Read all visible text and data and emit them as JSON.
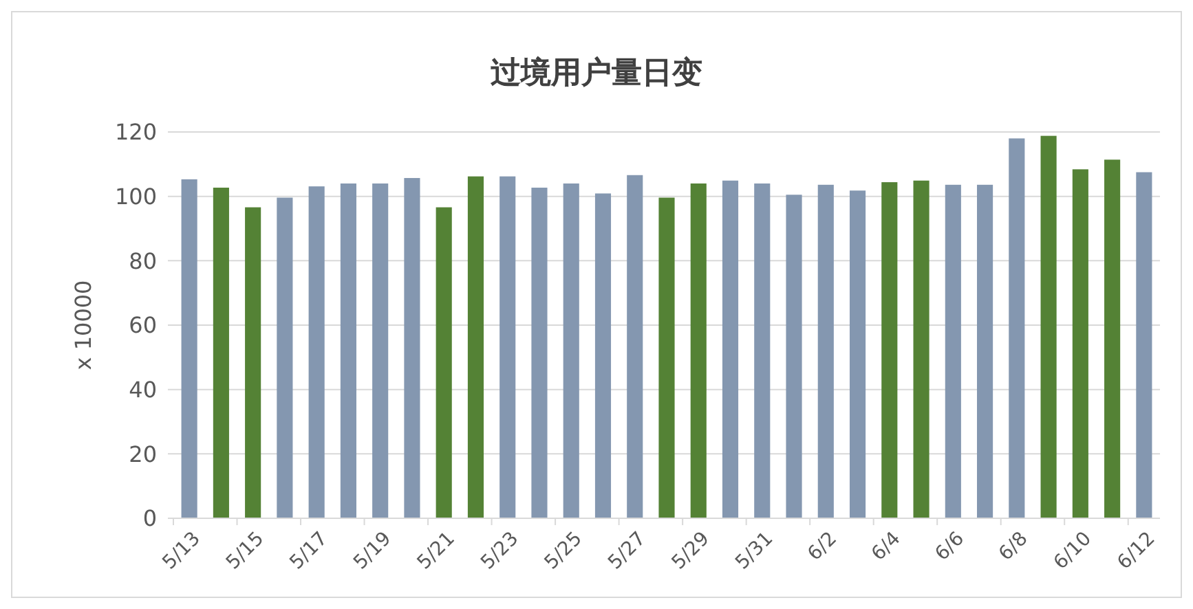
{
  "chart_data": {
    "type": "bar",
    "title": "过境用户量日变",
    "ylabel": "x 10000",
    "categories": [
      "5/13",
      null,
      "5/15",
      null,
      "5/17",
      null,
      "5/19",
      null,
      "5/21",
      null,
      "5/23",
      null,
      "5/25",
      null,
      "5/27",
      null,
      "5/29",
      null,
      "5/31",
      null,
      "6/2",
      null,
      "6/4",
      null,
      "6/6",
      null,
      "6/8",
      null,
      "6/10",
      null,
      "6/12"
    ],
    "values": [
      105.3,
      102.7,
      96.6,
      99.6,
      103.1,
      104.0,
      104.0,
      105.7,
      96.6,
      106.2,
      106.2,
      102.7,
      104.0,
      100.9,
      106.6,
      99.6,
      104.0,
      104.9,
      104.0,
      100.5,
      103.6,
      101.8,
      104.4,
      104.9,
      103.6,
      103.6,
      118.0,
      118.8,
      108.4,
      111.4,
      107.5
    ],
    "colors": [
      "#8497b0",
      "#548235",
      "#548235",
      "#8497b0",
      "#8497b0",
      "#8497b0",
      "#8497b0",
      "#8497b0",
      "#548235",
      "#548235",
      "#8497b0",
      "#8497b0",
      "#8497b0",
      "#8497b0",
      "#8497b0",
      "#548235",
      "#548235",
      "#8497b0",
      "#8497b0",
      "#8497b0",
      "#8497b0",
      "#8497b0",
      "#548235",
      "#548235",
      "#8497b0",
      "#8497b0",
      "#8497b0",
      "#548235",
      "#548235",
      "#548235",
      "#8497b0"
    ],
    "ylim": [
      0,
      120
    ],
    "yticks": [
      0,
      20,
      40,
      60,
      80,
      100,
      120
    ],
    "grid": "y"
  }
}
